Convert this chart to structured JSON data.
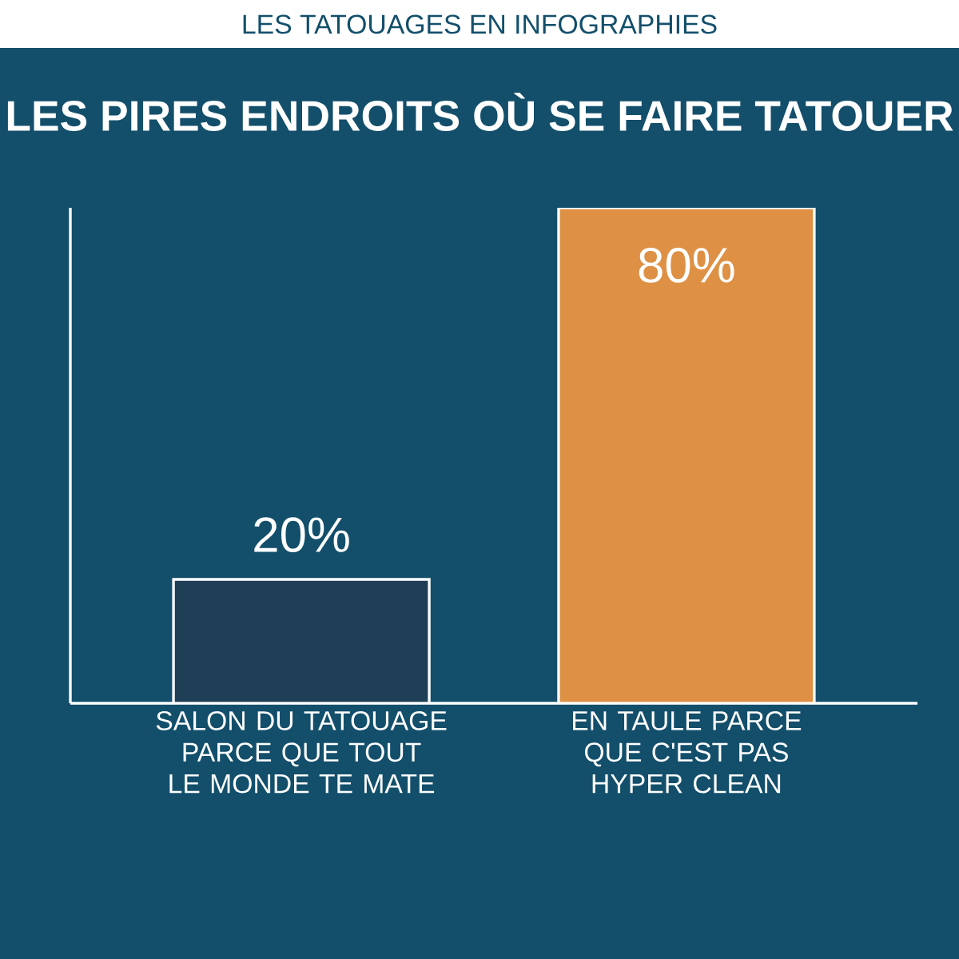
{
  "chart_data": {
    "type": "bar",
    "subtitle": "LES TATOUAGES EN INFOGRAPHIES",
    "title": "LES PIRES ENDROITS OÙ SE FAIRE TATOUER",
    "categories": [
      "SALON DU TATOUAGE PARCE QUE TOUT LE MONDE TE MATE",
      "EN TAULE PARCE QUE C'EST PAS HYPER CLEAN"
    ],
    "values": [
      20,
      80
    ],
    "colors": [
      "#1e3f56",
      "#de9145"
    ],
    "value_labels": [
      "20%",
      "80%"
    ]
  }
}
